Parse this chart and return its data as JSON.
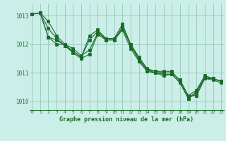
{
  "title": "Graphe pression niveau de la mer (hPa)",
  "bg_color": "#cceee8",
  "grid_color": "#99ccbb",
  "line_color": "#1a6b2a",
  "x_ticks": [
    0,
    1,
    2,
    3,
    4,
    5,
    6,
    7,
    8,
    9,
    10,
    11,
    12,
    13,
    14,
    15,
    16,
    17,
    18,
    19,
    20,
    21,
    22,
    23
  ],
  "ylim": [
    1009.7,
    1013.4
  ],
  "yticks": [
    1010,
    1011,
    1012,
    1013
  ],
  "series": [
    [
      1013.05,
      1013.1,
      1012.55,
      1012.2,
      1011.95,
      1011.7,
      1011.5,
      1011.65,
      1012.35,
      1012.15,
      1012.15,
      1012.5,
      1011.85,
      1011.4,
      1011.05,
      1011.0,
      1010.9,
      1010.95,
      1010.65,
      1010.1,
      1010.3,
      1010.8,
      1010.75,
      1010.65
    ],
    [
      1013.05,
      1013.1,
      1012.8,
      1012.3,
      1012.0,
      1011.85,
      1011.6,
      1011.8,
      1012.4,
      1012.2,
      1012.2,
      1012.55,
      1012.0,
      1011.5,
      1011.1,
      1011.05,
      1011.0,
      1011.0,
      1010.75,
      1010.2,
      1010.2,
      1010.8,
      1010.8,
      1010.7
    ],
    [
      1013.05,
      1013.1,
      1012.25,
      1012.0,
      1012.0,
      1011.75,
      1011.55,
      1012.15,
      1012.45,
      1012.15,
      1012.15,
      1012.6,
      1011.95,
      1011.45,
      1011.1,
      1011.0,
      1010.95,
      1010.95,
      1010.65,
      1010.1,
      1010.35,
      1010.85,
      1010.8,
      1010.7
    ],
    [
      1013.05,
      1013.1,
      1012.25,
      1012.15,
      1011.95,
      1011.75,
      1011.55,
      1012.3,
      1012.5,
      1012.2,
      1012.2,
      1012.7,
      1012.0,
      1011.55,
      1011.15,
      1011.05,
      1011.05,
      1011.05,
      1010.7,
      1010.2,
      1010.4,
      1010.9,
      1010.8,
      1010.7
    ]
  ]
}
